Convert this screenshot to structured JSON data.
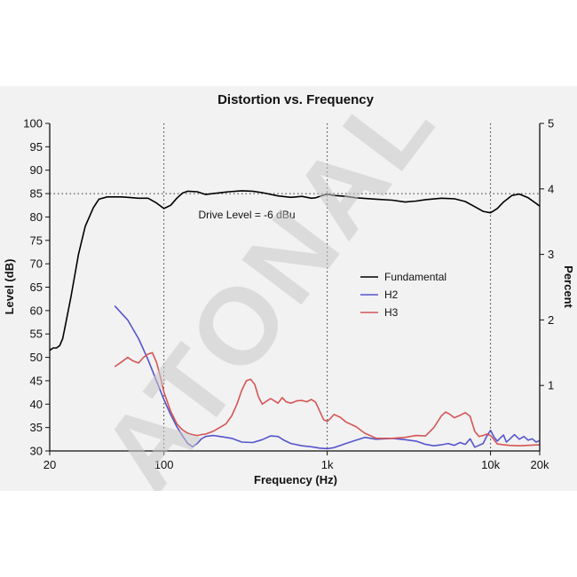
{
  "chart_data": {
    "type": "line",
    "title": "Distortion vs. Frequency",
    "xlabel": "Frequency (Hz)",
    "ylabel": "Level (dB)",
    "y2label": "Percent",
    "x_scale": "log",
    "xlim": [
      20,
      20000
    ],
    "ylim": [
      30,
      100
    ],
    "y2lim": [
      0,
      5
    ],
    "x_ticks": [
      {
        "value": 20,
        "label": "20"
      },
      {
        "value": 100,
        "label": "100"
      },
      {
        "value": 1000,
        "label": "1k"
      },
      {
        "value": 10000,
        "label": "10k"
      },
      {
        "value": 20000,
        "label": "20k"
      }
    ],
    "y_ticks": [
      "30",
      "35",
      "40",
      "45",
      "50",
      "55",
      "60",
      "65",
      "70",
      "75",
      "80",
      "85",
      "90",
      "95",
      "100"
    ],
    "y2_ticks": [
      "1",
      "2",
      "3",
      "4",
      "5"
    ],
    "vertical_gridlines_at": [
      100,
      1000,
      10000
    ],
    "reference_line_y": 85,
    "annotation": "Drive Level = -6 dBu",
    "legend_position": "center-right",
    "series": [
      {
        "name": "Fundamental",
        "color": "#000000",
        "points": [
          [
            20,
            51.5
          ],
          [
            21,
            52
          ],
          [
            22,
            52
          ],
          [
            23,
            52.5
          ],
          [
            24,
            54
          ],
          [
            25,
            57
          ],
          [
            27,
            63
          ],
          [
            30,
            72
          ],
          [
            33,
            78
          ],
          [
            37,
            82
          ],
          [
            40,
            83.8
          ],
          [
            45,
            84.3
          ],
          [
            50,
            84.3
          ],
          [
            55,
            84.3
          ],
          [
            60,
            84.2
          ],
          [
            70,
            84
          ],
          [
            80,
            84
          ],
          [
            90,
            83
          ],
          [
            100,
            81.8
          ],
          [
            110,
            82.5
          ],
          [
            120,
            84
          ],
          [
            130,
            85.1
          ],
          [
            140,
            85.5
          ],
          [
            160,
            85.4
          ],
          [
            180,
            84.8
          ],
          [
            200,
            85
          ],
          [
            250,
            85.4
          ],
          [
            300,
            85.6
          ],
          [
            350,
            85.5
          ],
          [
            400,
            85.2
          ],
          [
            500,
            84.5
          ],
          [
            600,
            84.2
          ],
          [
            700,
            84.4
          ],
          [
            800,
            84
          ],
          [
            850,
            84.1
          ],
          [
            900,
            84.4
          ],
          [
            1000,
            84.9
          ],
          [
            1100,
            84.6
          ],
          [
            1300,
            84.4
          ],
          [
            1500,
            84.1
          ],
          [
            2000,
            83.8
          ],
          [
            2500,
            83.6
          ],
          [
            3000,
            83.2
          ],
          [
            3500,
            83.4
          ],
          [
            4000,
            83.7
          ],
          [
            5000,
            84
          ],
          [
            6000,
            83.9
          ],
          [
            7000,
            83.3
          ],
          [
            8000,
            82.2
          ],
          [
            9000,
            81.2
          ],
          [
            10000,
            80.9
          ],
          [
            11000,
            81.8
          ],
          [
            12000,
            83.2
          ],
          [
            13500,
            84.6
          ],
          [
            15000,
            84.9
          ],
          [
            17000,
            84.1
          ],
          [
            19000,
            82.9
          ],
          [
            20000,
            82.3
          ]
        ]
      },
      {
        "name": "H2",
        "color": "#5555cc",
        "points": [
          [
            50,
            61
          ],
          [
            60,
            58
          ],
          [
            70,
            54
          ],
          [
            80,
            49.5
          ],
          [
            90,
            45
          ],
          [
            100,
            41
          ],
          [
            110,
            37.8
          ],
          [
            120,
            35.2
          ],
          [
            130,
            33.2
          ],
          [
            140,
            31.6
          ],
          [
            150,
            30.9
          ],
          [
            160,
            31.6
          ],
          [
            170,
            32.6
          ],
          [
            180,
            33.1
          ],
          [
            200,
            33.3
          ],
          [
            230,
            33
          ],
          [
            260,
            32.7
          ],
          [
            300,
            31.9
          ],
          [
            350,
            31.8
          ],
          [
            400,
            32.4
          ],
          [
            450,
            33.2
          ],
          [
            500,
            33.1
          ],
          [
            550,
            32.2
          ],
          [
            600,
            31.6
          ],
          [
            700,
            31.1
          ],
          [
            800,
            30.9
          ],
          [
            900,
            30.6
          ],
          [
            1000,
            30.5
          ],
          [
            1100,
            30.7
          ],
          [
            1300,
            31.6
          ],
          [
            1500,
            32.3
          ],
          [
            1700,
            32.9
          ],
          [
            2000,
            32.5
          ],
          [
            2500,
            32.7
          ],
          [
            3000,
            32.4
          ],
          [
            3500,
            32.1
          ],
          [
            4000,
            31.4
          ],
          [
            4500,
            31.1
          ],
          [
            5000,
            31.3
          ],
          [
            5500,
            31.6
          ],
          [
            6000,
            31.2
          ],
          [
            6500,
            31.8
          ],
          [
            7000,
            31.4
          ],
          [
            7500,
            32.6
          ],
          [
            8000,
            30.8
          ],
          [
            8500,
            31.2
          ],
          [
            9000,
            31.6
          ],
          [
            9500,
            33.2
          ],
          [
            10000,
            34.4
          ],
          [
            10500,
            33
          ],
          [
            11000,
            32.1
          ],
          [
            11500,
            32.8
          ],
          [
            12000,
            33.4
          ],
          [
            12500,
            31.9
          ],
          [
            13000,
            32.4
          ],
          [
            14000,
            33.5
          ],
          [
            15000,
            32.5
          ],
          [
            16000,
            33.1
          ],
          [
            17000,
            32.3
          ],
          [
            18000,
            32.6
          ],
          [
            19000,
            31.9
          ],
          [
            20000,
            32.2
          ]
        ]
      },
      {
        "name": "H3",
        "color": "#d45555",
        "points": [
          [
            50,
            48
          ],
          [
            55,
            49
          ],
          [
            60,
            50
          ],
          [
            65,
            49.2
          ],
          [
            70,
            48.8
          ],
          [
            75,
            50
          ],
          [
            80,
            50.7
          ],
          [
            85,
            51
          ],
          [
            90,
            49
          ],
          [
            95,
            46
          ],
          [
            100,
            42.6
          ],
          [
            110,
            38.5
          ],
          [
            120,
            35.8
          ],
          [
            130,
            34.5
          ],
          [
            140,
            33.8
          ],
          [
            150,
            33.5
          ],
          [
            160,
            33.3
          ],
          [
            170,
            33.5
          ],
          [
            180,
            33.6
          ],
          [
            200,
            34.2
          ],
          [
            220,
            35
          ],
          [
            240,
            35.8
          ],
          [
            260,
            37.5
          ],
          [
            280,
            40
          ],
          [
            300,
            43
          ],
          [
            320,
            45
          ],
          [
            340,
            45.3
          ],
          [
            360,
            44.2
          ],
          [
            380,
            41.5
          ],
          [
            400,
            40
          ],
          [
            420,
            40.5
          ],
          [
            450,
            41.2
          ],
          [
            480,
            40.6
          ],
          [
            500,
            40.2
          ],
          [
            530,
            41.4
          ],
          [
            560,
            40.5
          ],
          [
            600,
            40.2
          ],
          [
            650,
            40.7
          ],
          [
            700,
            40.8
          ],
          [
            750,
            40.5
          ],
          [
            800,
            41
          ],
          [
            850,
            40.4
          ],
          [
            900,
            38.5
          ],
          [
            950,
            36.7
          ],
          [
            1000,
            36.3
          ],
          [
            1050,
            37
          ],
          [
            1100,
            37.8
          ],
          [
            1200,
            37.2
          ],
          [
            1300,
            36.2
          ],
          [
            1500,
            35.2
          ],
          [
            1700,
            33.8
          ],
          [
            2000,
            32.7
          ],
          [
            2500,
            32.7
          ],
          [
            3000,
            32.9
          ],
          [
            3500,
            33.3
          ],
          [
            4000,
            33.2
          ],
          [
            4500,
            35
          ],
          [
            5000,
            37.5
          ],
          [
            5300,
            38.3
          ],
          [
            5600,
            37.9
          ],
          [
            6000,
            37.1
          ],
          [
            6500,
            37.6
          ],
          [
            7000,
            38.2
          ],
          [
            7500,
            37.4
          ],
          [
            8000,
            34.2
          ],
          [
            8500,
            33.1
          ],
          [
            9000,
            33.3
          ],
          [
            9500,
            33.6
          ],
          [
            10000,
            33.3
          ],
          [
            10500,
            32.4
          ],
          [
            11000,
            31.5
          ],
          [
            12000,
            31.3
          ],
          [
            13000,
            31.2
          ],
          [
            15000,
            31.1
          ],
          [
            17000,
            31.2
          ],
          [
            20000,
            31.3
          ]
        ]
      }
    ]
  },
  "watermark": "ATONAL"
}
